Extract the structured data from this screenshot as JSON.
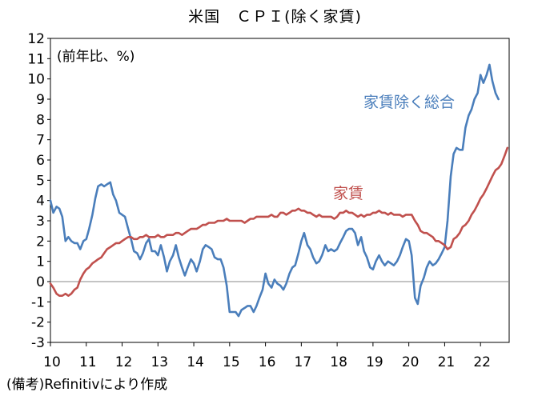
{
  "chart_data": {
    "type": "line",
    "title": "米国　ＣＰＩ(除く家賃)",
    "unit_label": "(前年比、%)",
    "source": "(備考)Refinitivにより作成",
    "x_ticks": [
      "10",
      "11",
      "12",
      "13",
      "14",
      "15",
      "16",
      "17",
      "18",
      "19",
      "20",
      "21",
      "22"
    ],
    "x_range": [
      2010,
      2022.8
    ],
    "y_ticks": [
      "12",
      "11",
      "10",
      "9",
      "8",
      "7",
      "6",
      "5",
      "4",
      "3",
      "2",
      "1",
      "0",
      "-1",
      "-2",
      "-3"
    ],
    "ylim": [
      -3,
      12
    ],
    "grid": false,
    "zero_line": true,
    "series": [
      {
        "name": "家賃除く総合",
        "color": "#4a7ebb",
        "points": [
          [
            2010.0,
            4.0
          ],
          [
            2010.08,
            3.4
          ],
          [
            2010.17,
            3.7
          ],
          [
            2010.25,
            3.6
          ],
          [
            2010.33,
            3.2
          ],
          [
            2010.42,
            2.0
          ],
          [
            2010.5,
            2.2
          ],
          [
            2010.58,
            2.0
          ],
          [
            2010.67,
            1.9
          ],
          [
            2010.75,
            1.9
          ],
          [
            2010.83,
            1.6
          ],
          [
            2010.92,
            2.0
          ],
          [
            2011.0,
            2.1
          ],
          [
            2011.08,
            2.6
          ],
          [
            2011.17,
            3.3
          ],
          [
            2011.25,
            4.1
          ],
          [
            2011.33,
            4.7
          ],
          [
            2011.42,
            4.8
          ],
          [
            2011.5,
            4.7
          ],
          [
            2011.58,
            4.8
          ],
          [
            2011.67,
            4.9
          ],
          [
            2011.75,
            4.3
          ],
          [
            2011.83,
            4.0
          ],
          [
            2011.92,
            3.4
          ],
          [
            2012.0,
            3.3
          ],
          [
            2012.08,
            3.2
          ],
          [
            2012.17,
            2.6
          ],
          [
            2012.25,
            2.1
          ],
          [
            2012.33,
            1.5
          ],
          [
            2012.42,
            1.4
          ],
          [
            2012.5,
            1.1
          ],
          [
            2012.58,
            1.4
          ],
          [
            2012.67,
            1.9
          ],
          [
            2012.75,
            2.1
          ],
          [
            2012.83,
            1.5
          ],
          [
            2012.92,
            1.5
          ],
          [
            2013.0,
            1.3
          ],
          [
            2013.08,
            1.8
          ],
          [
            2013.17,
            1.2
          ],
          [
            2013.25,
            0.5
          ],
          [
            2013.33,
            1.0
          ],
          [
            2013.42,
            1.3
          ],
          [
            2013.5,
            1.8
          ],
          [
            2013.58,
            1.2
          ],
          [
            2013.67,
            0.7
          ],
          [
            2013.75,
            0.3
          ],
          [
            2013.83,
            0.7
          ],
          [
            2013.92,
            1.1
          ],
          [
            2014.0,
            0.9
          ],
          [
            2014.08,
            0.5
          ],
          [
            2014.17,
            1.0
          ],
          [
            2014.25,
            1.6
          ],
          [
            2014.33,
            1.8
          ],
          [
            2014.42,
            1.7
          ],
          [
            2014.5,
            1.6
          ],
          [
            2014.58,
            1.2
          ],
          [
            2014.67,
            1.1
          ],
          [
            2014.75,
            1.1
          ],
          [
            2014.83,
            0.7
          ],
          [
            2014.92,
            -0.2
          ],
          [
            2015.0,
            -1.5
          ],
          [
            2015.08,
            -1.5
          ],
          [
            2015.17,
            -1.5
          ],
          [
            2015.25,
            -1.7
          ],
          [
            2015.33,
            -1.4
          ],
          [
            2015.42,
            -1.3
          ],
          [
            2015.5,
            -1.2
          ],
          [
            2015.58,
            -1.2
          ],
          [
            2015.67,
            -1.5
          ],
          [
            2015.75,
            -1.2
          ],
          [
            2015.83,
            -0.8
          ],
          [
            2015.92,
            -0.4
          ],
          [
            2016.0,
            0.4
          ],
          [
            2016.08,
            -0.1
          ],
          [
            2016.17,
            -0.3
          ],
          [
            2016.25,
            0.1
          ],
          [
            2016.33,
            -0.1
          ],
          [
            2016.42,
            -0.2
          ],
          [
            2016.5,
            -0.4
          ],
          [
            2016.58,
            -0.1
          ],
          [
            2016.67,
            0.4
          ],
          [
            2016.75,
            0.7
          ],
          [
            2016.83,
            0.8
          ],
          [
            2016.92,
            1.4
          ],
          [
            2017.0,
            2.0
          ],
          [
            2017.08,
            2.4
          ],
          [
            2017.17,
            1.8
          ],
          [
            2017.25,
            1.6
          ],
          [
            2017.33,
            1.2
          ],
          [
            2017.42,
            0.9
          ],
          [
            2017.5,
            1.0
          ],
          [
            2017.58,
            1.3
          ],
          [
            2017.67,
            1.8
          ],
          [
            2017.75,
            1.5
          ],
          [
            2017.83,
            1.6
          ],
          [
            2017.92,
            1.5
          ],
          [
            2018.0,
            1.6
          ],
          [
            2018.08,
            1.9
          ],
          [
            2018.17,
            2.2
          ],
          [
            2018.25,
            2.5
          ],
          [
            2018.33,
            2.6
          ],
          [
            2018.42,
            2.6
          ],
          [
            2018.5,
            2.4
          ],
          [
            2018.58,
            1.8
          ],
          [
            2018.67,
            2.2
          ],
          [
            2018.75,
            1.5
          ],
          [
            2018.83,
            1.2
          ],
          [
            2018.92,
            0.7
          ],
          [
            2019.0,
            0.6
          ],
          [
            2019.08,
            1.0
          ],
          [
            2019.17,
            1.3
          ],
          [
            2019.25,
            1.0
          ],
          [
            2019.33,
            0.8
          ],
          [
            2019.42,
            1.0
          ],
          [
            2019.5,
            0.9
          ],
          [
            2019.58,
            0.8
          ],
          [
            2019.67,
            1.0
          ],
          [
            2019.75,
            1.3
          ],
          [
            2019.83,
            1.7
          ],
          [
            2019.92,
            2.1
          ],
          [
            2020.0,
            2.0
          ],
          [
            2020.08,
            1.3
          ],
          [
            2020.17,
            -0.8
          ],
          [
            2020.25,
            -1.1
          ],
          [
            2020.33,
            -0.2
          ],
          [
            2020.42,
            0.2
          ],
          [
            2020.5,
            0.7
          ],
          [
            2020.58,
            1.0
          ],
          [
            2020.67,
            0.8
          ],
          [
            2020.75,
            0.9
          ],
          [
            2020.83,
            1.1
          ],
          [
            2020.92,
            1.4
          ],
          [
            2021.0,
            1.7
          ],
          [
            2021.08,
            3.0
          ],
          [
            2021.17,
            5.2
          ],
          [
            2021.25,
            6.3
          ],
          [
            2021.33,
            6.6
          ],
          [
            2021.42,
            6.5
          ],
          [
            2021.5,
            6.5
          ],
          [
            2021.58,
            7.6
          ],
          [
            2021.67,
            8.2
          ],
          [
            2021.75,
            8.5
          ],
          [
            2021.83,
            9.0
          ],
          [
            2021.92,
            9.3
          ],
          [
            2022.0,
            10.2
          ],
          [
            2022.08,
            9.8
          ],
          [
            2022.17,
            10.2
          ],
          [
            2022.25,
            10.7
          ],
          [
            2022.33,
            9.9
          ],
          [
            2022.42,
            9.3
          ],
          [
            2022.5,
            9.0
          ]
        ]
      },
      {
        "name": "家賃",
        "color": "#c0504d",
        "points": [
          [
            2010.0,
            -0.1
          ],
          [
            2010.08,
            -0.3
          ],
          [
            2010.17,
            -0.6
          ],
          [
            2010.25,
            -0.7
          ],
          [
            2010.33,
            -0.7
          ],
          [
            2010.42,
            -0.6
          ],
          [
            2010.5,
            -0.7
          ],
          [
            2010.58,
            -0.6
          ],
          [
            2010.67,
            -0.4
          ],
          [
            2010.75,
            -0.3
          ],
          [
            2010.83,
            0.1
          ],
          [
            2010.92,
            0.4
          ],
          [
            2011.0,
            0.6
          ],
          [
            2011.08,
            0.7
          ],
          [
            2011.17,
            0.9
          ],
          [
            2011.25,
            1.0
          ],
          [
            2011.33,
            1.1
          ],
          [
            2011.42,
            1.2
          ],
          [
            2011.5,
            1.4
          ],
          [
            2011.58,
            1.6
          ],
          [
            2011.67,
            1.7
          ],
          [
            2011.75,
            1.8
          ],
          [
            2011.83,
            1.9
          ],
          [
            2011.92,
            1.9
          ],
          [
            2012.0,
            2.0
          ],
          [
            2012.08,
            2.1
          ],
          [
            2012.17,
            2.2
          ],
          [
            2012.25,
            2.2
          ],
          [
            2012.33,
            2.1
          ],
          [
            2012.42,
            2.1
          ],
          [
            2012.5,
            2.2
          ],
          [
            2012.58,
            2.2
          ],
          [
            2012.67,
            2.3
          ],
          [
            2012.75,
            2.2
          ],
          [
            2012.83,
            2.2
          ],
          [
            2012.92,
            2.2
          ],
          [
            2013.0,
            2.3
          ],
          [
            2013.08,
            2.2
          ],
          [
            2013.17,
            2.2
          ],
          [
            2013.25,
            2.3
          ],
          [
            2013.33,
            2.3
          ],
          [
            2013.42,
            2.3
          ],
          [
            2013.5,
            2.4
          ],
          [
            2013.58,
            2.4
          ],
          [
            2013.67,
            2.3
          ],
          [
            2013.75,
            2.4
          ],
          [
            2013.83,
            2.5
          ],
          [
            2013.92,
            2.6
          ],
          [
            2014.0,
            2.6
          ],
          [
            2014.08,
            2.6
          ],
          [
            2014.17,
            2.7
          ],
          [
            2014.25,
            2.8
          ],
          [
            2014.33,
            2.8
          ],
          [
            2014.42,
            2.9
          ],
          [
            2014.5,
            2.9
          ],
          [
            2014.58,
            2.9
          ],
          [
            2014.67,
            3.0
          ],
          [
            2014.75,
            3.0
          ],
          [
            2014.83,
            3.0
          ],
          [
            2014.92,
            3.1
          ],
          [
            2015.0,
            3.0
          ],
          [
            2015.08,
            3.0
          ],
          [
            2015.17,
            3.0
          ],
          [
            2015.25,
            3.0
          ],
          [
            2015.33,
            3.0
          ],
          [
            2015.42,
            2.9
          ],
          [
            2015.5,
            3.0
          ],
          [
            2015.58,
            3.1
          ],
          [
            2015.67,
            3.1
          ],
          [
            2015.75,
            3.2
          ],
          [
            2015.83,
            3.2
          ],
          [
            2015.92,
            3.2
          ],
          [
            2016.0,
            3.2
          ],
          [
            2016.08,
            3.2
          ],
          [
            2016.17,
            3.3
          ],
          [
            2016.25,
            3.2
          ],
          [
            2016.33,
            3.2
          ],
          [
            2016.42,
            3.4
          ],
          [
            2016.5,
            3.4
          ],
          [
            2016.58,
            3.3
          ],
          [
            2016.67,
            3.4
          ],
          [
            2016.75,
            3.5
          ],
          [
            2016.83,
            3.5
          ],
          [
            2016.92,
            3.6
          ],
          [
            2017.0,
            3.5
          ],
          [
            2017.08,
            3.5
          ],
          [
            2017.17,
            3.4
          ],
          [
            2017.25,
            3.4
          ],
          [
            2017.33,
            3.3
          ],
          [
            2017.42,
            3.2
          ],
          [
            2017.5,
            3.3
          ],
          [
            2017.58,
            3.2
          ],
          [
            2017.67,
            3.2
          ],
          [
            2017.75,
            3.2
          ],
          [
            2017.83,
            3.2
          ],
          [
            2017.92,
            3.1
          ],
          [
            2018.0,
            3.2
          ],
          [
            2018.08,
            3.4
          ],
          [
            2018.17,
            3.4
          ],
          [
            2018.25,
            3.5
          ],
          [
            2018.33,
            3.4
          ],
          [
            2018.42,
            3.4
          ],
          [
            2018.5,
            3.3
          ],
          [
            2018.58,
            3.2
          ],
          [
            2018.67,
            3.3
          ],
          [
            2018.75,
            3.2
          ],
          [
            2018.83,
            3.3
          ],
          [
            2018.92,
            3.3
          ],
          [
            2019.0,
            3.4
          ],
          [
            2019.08,
            3.4
          ],
          [
            2019.17,
            3.5
          ],
          [
            2019.25,
            3.4
          ],
          [
            2019.33,
            3.4
          ],
          [
            2019.42,
            3.3
          ],
          [
            2019.5,
            3.4
          ],
          [
            2019.58,
            3.3
          ],
          [
            2019.67,
            3.3
          ],
          [
            2019.75,
            3.3
          ],
          [
            2019.83,
            3.2
          ],
          [
            2019.92,
            3.3
          ],
          [
            2020.0,
            3.3
          ],
          [
            2020.08,
            3.3
          ],
          [
            2020.17,
            3.0
          ],
          [
            2020.25,
            2.8
          ],
          [
            2020.33,
            2.5
          ],
          [
            2020.42,
            2.4
          ],
          [
            2020.5,
            2.4
          ],
          [
            2020.58,
            2.3
          ],
          [
            2020.67,
            2.2
          ],
          [
            2020.75,
            2.0
          ],
          [
            2020.83,
            2.0
          ],
          [
            2020.92,
            1.9
          ],
          [
            2021.0,
            1.8
          ],
          [
            2021.08,
            1.6
          ],
          [
            2021.17,
            1.7
          ],
          [
            2021.25,
            2.1
          ],
          [
            2021.33,
            2.2
          ],
          [
            2021.42,
            2.4
          ],
          [
            2021.5,
            2.7
          ],
          [
            2021.58,
            2.8
          ],
          [
            2021.67,
            3.0
          ],
          [
            2021.75,
            3.3
          ],
          [
            2021.83,
            3.5
          ],
          [
            2021.92,
            3.8
          ],
          [
            2022.0,
            4.1
          ],
          [
            2022.08,
            4.3
          ],
          [
            2022.17,
            4.6
          ],
          [
            2022.25,
            4.9
          ],
          [
            2022.33,
            5.2
          ],
          [
            2022.42,
            5.5
          ],
          [
            2022.5,
            5.6
          ],
          [
            2022.58,
            5.8
          ],
          [
            2022.67,
            6.2
          ],
          [
            2022.75,
            6.6
          ]
        ]
      }
    ]
  }
}
